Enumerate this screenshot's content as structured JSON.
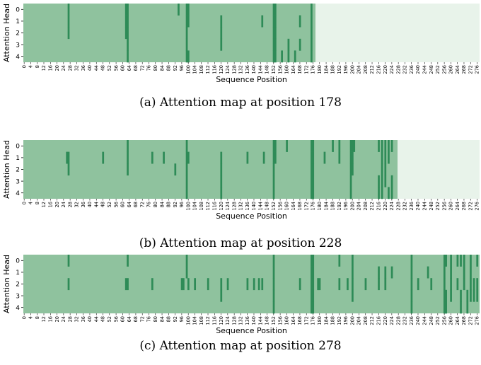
{
  "colors": {
    "background_cell": "#8fc29e",
    "highlight_cell": "#2e8b57",
    "future_cell": "#e8f3ea",
    "axis_text": "#000000"
  },
  "chart_data": [
    {
      "type": "heatmap",
      "caption": "(a)  Attention map at position 178",
      "xlabel": "Sequence Position",
      "ylabel": "Attention Head",
      "heads": [
        0,
        1,
        2,
        3,
        4
      ],
      "x_ticks": [
        0,
        4,
        8,
        12,
        16,
        20,
        24,
        28,
        32,
        36,
        40,
        44,
        48,
        52,
        56,
        60,
        64,
        68,
        72,
        76,
        80,
        84,
        88,
        92,
        96,
        100,
        104,
        108,
        112,
        116,
        120,
        124,
        128,
        132,
        136,
        140,
        144,
        148,
        152,
        156,
        160,
        164,
        168,
        172,
        176,
        180,
        184,
        188,
        192,
        196,
        200,
        204,
        208,
        212,
        216,
        220,
        224,
        228,
        232,
        236,
        240,
        244,
        248,
        252,
        256,
        260,
        264,
        268,
        272,
        276
      ],
      "sequence_length": 278,
      "current_position": 178,
      "attended": {
        "0": [
          27,
          62,
          63,
          94,
          99,
          100,
          152,
          153,
          175
        ],
        "1": [
          27,
          62,
          63,
          99,
          100,
          120,
          145,
          152,
          153,
          168,
          175
        ],
        "2": [
          27,
          62,
          63,
          99,
          120,
          152,
          153,
          175
        ],
        "3": [
          63,
          99,
          120,
          152,
          153,
          161,
          168,
          175
        ],
        "4": [
          63,
          99,
          100,
          152,
          153,
          157,
          161,
          165,
          175
        ]
      }
    },
    {
      "type": "heatmap",
      "caption": "(b)  Attention map at position 228",
      "xlabel": "Sequence Position",
      "ylabel": "Attention Head",
      "heads": [
        0,
        1,
        2,
        3,
        4
      ],
      "x_ticks": [
        0,
        4,
        8,
        12,
        16,
        20,
        24,
        28,
        32,
        36,
        40,
        44,
        48,
        52,
        56,
        60,
        64,
        68,
        72,
        76,
        80,
        84,
        88,
        92,
        96,
        100,
        104,
        108,
        112,
        116,
        120,
        124,
        128,
        132,
        136,
        140,
        144,
        148,
        152,
        156,
        160,
        164,
        168,
        172,
        176,
        180,
        184,
        188,
        192,
        196,
        200,
        204,
        208,
        212,
        216,
        220,
        224,
        228,
        232,
        236,
        240,
        244,
        248,
        252,
        256,
        260,
        264,
        268,
        272,
        276
      ],
      "sequence_length": 278,
      "current_position": 228,
      "attended": {
        "0": [
          63,
          99,
          152,
          153,
          160,
          175,
          176,
          188,
          192,
          199,
          200,
          201,
          216,
          218,
          220,
          222,
          224
        ],
        "1": [
          26,
          27,
          48,
          63,
          78,
          85,
          99,
          100,
          120,
          136,
          146,
          152,
          153,
          175,
          176,
          183,
          192,
          199,
          200,
          218,
          220,
          222
        ],
        "2": [
          27,
          63,
          92,
          99,
          120,
          152,
          175,
          176,
          199,
          200,
          218,
          220
        ],
        "3": [
          99,
          120,
          152,
          175,
          176,
          199,
          216,
          218,
          220,
          224
        ],
        "4": [
          99,
          120,
          152,
          175,
          176,
          199,
          216,
          218,
          222,
          224
        ]
      }
    },
    {
      "type": "heatmap",
      "caption": "(c)  Attention map at position 278",
      "xlabel": "Sequence Position",
      "ylabel": "Attention Head",
      "heads": [
        0,
        1,
        2,
        3,
        4
      ],
      "x_ticks": [
        0,
        4,
        8,
        12,
        16,
        20,
        24,
        28,
        32,
        36,
        40,
        44,
        48,
        52,
        56,
        60,
        64,
        68,
        72,
        76,
        80,
        84,
        88,
        92,
        96,
        100,
        104,
        108,
        112,
        116,
        120,
        124,
        128,
        132,
        136,
        140,
        144,
        148,
        152,
        156,
        160,
        164,
        168,
        172,
        176,
        180,
        184,
        188,
        192,
        196,
        200,
        204,
        208,
        212,
        216,
        220,
        224,
        228,
        232,
        236,
        240,
        244,
        248,
        252,
        256,
        260,
        264,
        268,
        272,
        276
      ],
      "sequence_length": 278,
      "current_position": 278,
      "attended": {
        "0": [
          27,
          63,
          99,
          152,
          175,
          176,
          192,
          200,
          236,
          256,
          257,
          260,
          264,
          266,
          268,
          272,
          276
        ],
        "1": [
          99,
          152,
          175,
          176,
          200,
          216,
          220,
          224,
          236,
          246,
          256,
          260,
          268,
          272
        ],
        "2": [
          27,
          62,
          63,
          78,
          96,
          97,
          100,
          104,
          112,
          120,
          124,
          136,
          140,
          143,
          145,
          152,
          168,
          175,
          176,
          179,
          180,
          192,
          197,
          200,
          208,
          216,
          220,
          236,
          240,
          248,
          256,
          260,
          264,
          268,
          272,
          274,
          276
        ],
        "3": [
          120,
          152,
          175,
          176,
          200,
          236,
          256,
          257,
          260,
          266,
          270,
          272,
          274,
          276
        ],
        "4": [
          152,
          175,
          176,
          236,
          256,
          257,
          266,
          270
        ]
      }
    }
  ]
}
